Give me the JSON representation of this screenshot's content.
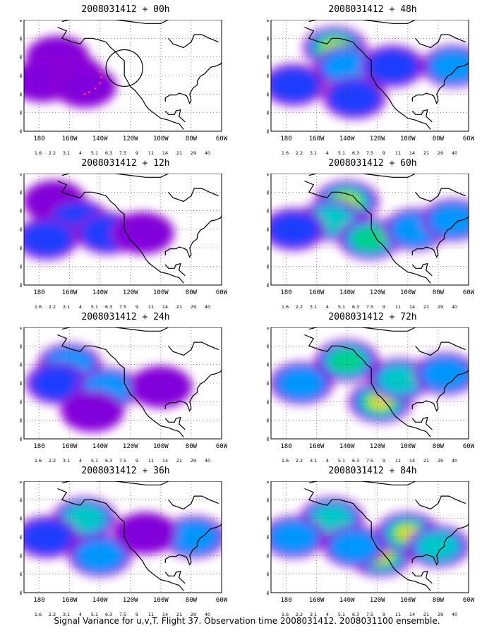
{
  "figure": {
    "caption": "Signal Variance for u,v,T. Flight 37. Observation time 2008031412. 2008031100 ensemble."
  },
  "axes": {
    "y_ticks": [
      "70N",
      "60N",
      "50N",
      "40N",
      "30N",
      "20N",
      "10N"
    ],
    "x_ticks": [
      "180",
      "160W",
      "140W",
      "120W",
      "100W",
      "80W",
      "60W"
    ],
    "lat_range": [
      10,
      70
    ],
    "lon_range": [
      -190,
      -60
    ],
    "grid": "dotted"
  },
  "colorbar": {
    "labels": [
      "1.6",
      "2.2",
      "3.1",
      "4",
      "5.1",
      "6.3",
      "7.5",
      "9",
      "11",
      "14",
      "21",
      "29",
      "40"
    ],
    "colors": [
      "#a000c8",
      "#8200dc",
      "#1e3cff",
      "#0096ff",
      "#00c8c8",
      "#00d28c",
      "#00dc00",
      "#a0e632",
      "#e6dc32",
      "#e6af2d",
      "#f08228",
      "#fa3c3c",
      "#f00082",
      "#ff0096"
    ]
  },
  "chart_data": [
    {
      "type": "heatmap",
      "title": "2008031412 + 00h",
      "blobs": [
        {
          "lon": -168,
          "lat": 50,
          "level": 1
        },
        {
          "lon": -158,
          "lat": 40,
          "level": 1
        },
        {
          "lon": -178,
          "lat": 37,
          "level": 1
        },
        {
          "lon": -150,
          "lat": 34,
          "level": 1
        }
      ],
      "annotations": {
        "circle_center": [
          -124,
          44
        ],
        "dotted_track": "magenta"
      }
    },
    {
      "type": "heatmap",
      "title": "2008031412 + 12h",
      "blobs": [
        {
          "lon": -170,
          "lat": 55,
          "level": 1
        },
        {
          "lon": -155,
          "lat": 45,
          "level": 2
        },
        {
          "lon": -175,
          "lat": 35,
          "level": 2
        },
        {
          "lon": -135,
          "lat": 38,
          "level": 2
        },
        {
          "lon": -112,
          "lat": 38,
          "level": 1
        }
      ]
    },
    {
      "type": "heatmap",
      "title": "2008031412 + 24h",
      "blobs": [
        {
          "lon": -160,
          "lat": 50,
          "level": 3
        },
        {
          "lon": -168,
          "lat": 40,
          "level": 2
        },
        {
          "lon": -135,
          "lat": 37,
          "level": 3
        },
        {
          "lon": -100,
          "lat": 38,
          "level": 1
        },
        {
          "lon": -145,
          "lat": 25,
          "level": 1
        }
      ]
    },
    {
      "type": "heatmap",
      "title": "2008031412 + 36h",
      "blobs": [
        {
          "lon": -150,
          "lat": 50,
          "level": 4
        },
        {
          "lon": -175,
          "lat": 40,
          "level": 2
        },
        {
          "lon": -140,
          "lat": 30,
          "level": 3
        },
        {
          "lon": -78,
          "lat": 40,
          "level": 3
        },
        {
          "lon": -110,
          "lat": 42,
          "level": 1
        }
      ]
    },
    {
      "type": "heatmap",
      "title": "2008031412 + 48h",
      "blobs": [
        {
          "lon": -148,
          "lat": 55,
          "level": 7
        },
        {
          "lon": -140,
          "lat": 45,
          "level": 3
        },
        {
          "lon": -175,
          "lat": 35,
          "level": 2
        },
        {
          "lon": -110,
          "lat": 45,
          "level": 2
        },
        {
          "lon": -70,
          "lat": 45,
          "level": 3
        },
        {
          "lon": -135,
          "lat": 28,
          "level": 2
        }
      ]
    },
    {
      "type": "heatmap",
      "title": "2008031412 + 60h",
      "blobs": [
        {
          "lon": -140,
          "lat": 55,
          "level": 7
        },
        {
          "lon": -150,
          "lat": 45,
          "level": 4
        },
        {
          "lon": -125,
          "lat": 35,
          "level": 5
        },
        {
          "lon": -95,
          "lat": 40,
          "level": 3
        },
        {
          "lon": -70,
          "lat": 45,
          "level": 3
        },
        {
          "lon": -175,
          "lat": 40,
          "level": 2
        }
      ]
    },
    {
      "type": "heatmap",
      "title": "2008031412 + 72h",
      "blobs": [
        {
          "lon": -140,
          "lat": 52,
          "level": 5
        },
        {
          "lon": -118,
          "lat": 30,
          "level": 8
        },
        {
          "lon": -105,
          "lat": 42,
          "level": 4
        },
        {
          "lon": -170,
          "lat": 40,
          "level": 3
        },
        {
          "lon": -75,
          "lat": 45,
          "level": 3
        }
      ]
    },
    {
      "type": "heatmap",
      "title": "2008031412 + 84h",
      "blobs": [
        {
          "lon": -118,
          "lat": 30,
          "level": 9
        },
        {
          "lon": -100,
          "lat": 42,
          "level": 8
        },
        {
          "lon": -150,
          "lat": 50,
          "level": 4
        },
        {
          "lon": -175,
          "lat": 40,
          "level": 3
        },
        {
          "lon": -80,
          "lat": 35,
          "level": 4
        },
        {
          "lon": -135,
          "lat": 35,
          "level": 3
        }
      ]
    }
  ]
}
